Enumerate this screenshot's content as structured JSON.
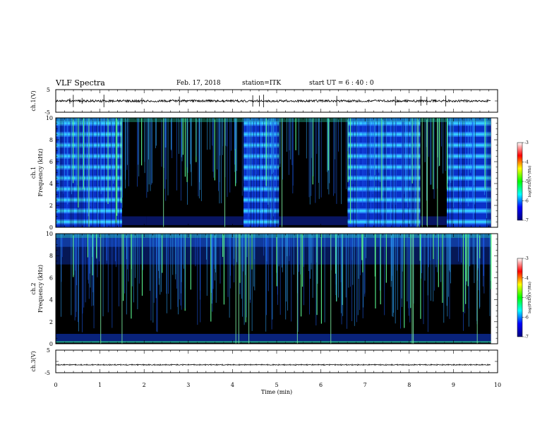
{
  "header": {
    "title": "VLF Spectra",
    "date": "Feb. 17, 2018",
    "station": "station=ITK",
    "start_ut": "start  UT =   6 : 40 : 0"
  },
  "chart_data": [
    {
      "type": "line",
      "panel": "ch1-waveform",
      "ylabel": "ch.1(V)",
      "ylim": [
        -5,
        5
      ],
      "yticks": [
        "5",
        "-5"
      ],
      "trace_level": 0,
      "color": "#000000"
    },
    {
      "type": "heatmap",
      "panel": "ch1-spectrogram",
      "ylabel_line1": "ch.1",
      "ylabel_line2": "Frequency  (kHz)",
      "ylim": [
        0,
        10
      ],
      "yticks": [
        "0",
        "2",
        "4",
        "6",
        "8",
        "10"
      ],
      "xlim": [
        0,
        10
      ],
      "quiet_intervals_min": [
        [
          1.5,
          2.05
        ],
        [
          2.05,
          4.25
        ],
        [
          5.05,
          6.6
        ],
        [
          8.25,
          8.85
        ]
      ],
      "band_spacing_khz": 1.0,
      "data_end_min": 9.85,
      "colorbar": {
        "label": "log(PSD)(V²/Hz)",
        "range": [
          -7,
          -3
        ],
        "ticks": [
          "-3",
          "-4",
          "-5",
          "-6",
          "-7"
        ],
        "colors": [
          "#000080",
          "#0000ff",
          "#00ffff",
          "#00ff00",
          "#ffff00",
          "#ff0000",
          "#ffffff"
        ]
      }
    },
    {
      "type": "heatmap",
      "panel": "ch2-spectrogram",
      "ylabel_line1": "ch.2",
      "ylabel_line2": "Frequency  (kHz)",
      "ylim": [
        0,
        10
      ],
      "yticks": [
        "0",
        "2",
        "4",
        "6",
        "8",
        "10"
      ],
      "xlim": [
        0,
        10
      ],
      "data_end_min": 9.85,
      "colorbar": {
        "label": "log(PSD)(V²/Hz)",
        "range": [
          -7,
          -3
        ],
        "ticks": [
          "-3",
          "-4",
          "-5",
          "-6",
          "-7"
        ],
        "colors": [
          "#000080",
          "#0000ff",
          "#00ffff",
          "#00ff00",
          "#ffff00",
          "#ff0000",
          "#ffffff"
        ]
      }
    },
    {
      "type": "line",
      "panel": "ch3-waveform",
      "ylabel": "ch.3(V)",
      "ylim": [
        -5,
        5
      ],
      "yticks": [
        "5",
        "-5"
      ],
      "trace_level": -1.5,
      "color": "#000000"
    }
  ],
  "xaxis": {
    "label": "Time  (min)",
    "ticks": [
      "0",
      "1",
      "2",
      "3",
      "4",
      "5",
      "6",
      "7",
      "8",
      "9",
      "10"
    ],
    "range": [
      0,
      10
    ]
  }
}
